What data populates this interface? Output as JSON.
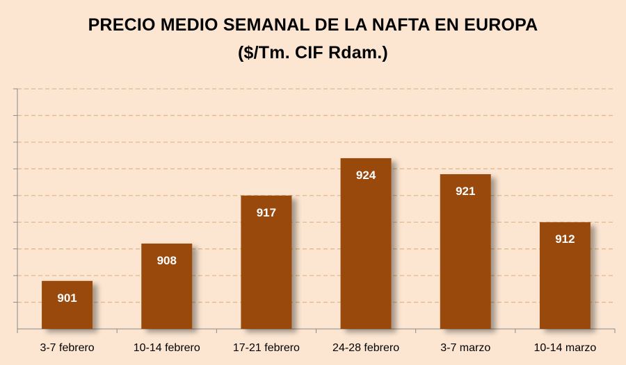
{
  "chart_data": {
    "type": "bar",
    "title": "PRECIO  MEDIO SEMANAL DE LA NAFTA EN EUROPA",
    "subtitle": "($/Tm. CIF Rdam.)",
    "categories": [
      "3-7 febrero",
      "10-14 febrero",
      "17-21 febrero",
      "24-28 febrero",
      "3-7 marzo",
      "10-14 marzo"
    ],
    "values": [
      901,
      908,
      917,
      924,
      921,
      912
    ],
    "ylim": [
      892,
      937
    ],
    "ytick_step": 5,
    "grid": true,
    "xlabel": "",
    "ylabel": "",
    "bar_color": "#9a4a08",
    "grid_color": "#e3b88a",
    "background_color": "#fce6d2"
  }
}
